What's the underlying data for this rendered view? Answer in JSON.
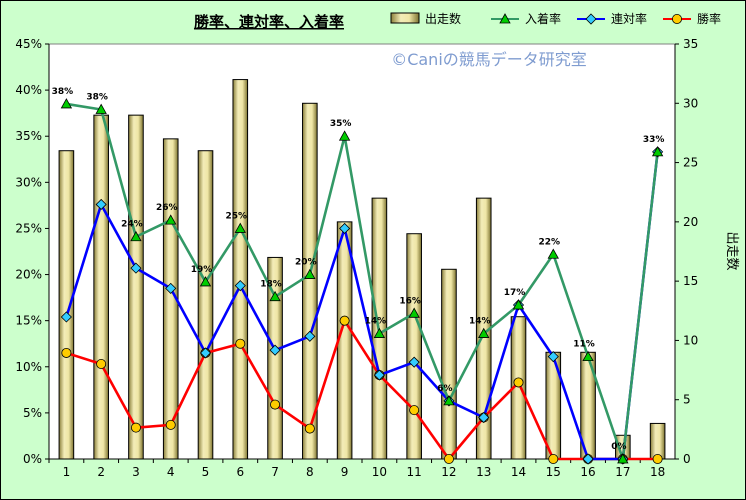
{
  "chart_data": {
    "type": "bar+line",
    "title": "勝率、連対率、入着率",
    "watermark": "©Caniの競馬データ研究室",
    "categories": [
      "1",
      "2",
      "3",
      "4",
      "5",
      "6",
      "7",
      "8",
      "9",
      "10",
      "11",
      "12",
      "13",
      "14",
      "15",
      "16",
      "17",
      "18"
    ],
    "y2label": "出走数",
    "yleft": {
      "range": [
        0,
        45
      ],
      "ticks": [
        "0%",
        "5%",
        "10%",
        "15%",
        "20%",
        "25%",
        "30%",
        "35%",
        "40%",
        "45%"
      ]
    },
    "yright": {
      "range": [
        0,
        35
      ],
      "ticks": [
        "0",
        "5",
        "10",
        "15",
        "20",
        "25",
        "30",
        "35"
      ]
    },
    "bars": {
      "name": "出走数",
      "color": "#e6d99a",
      "values": [
        26,
        29,
        29,
        27,
        26,
        32,
        17,
        30,
        20,
        22,
        19,
        16,
        22,
        12,
        9,
        9,
        2,
        3
      ]
    },
    "series": [
      {
        "name": "入着率",
        "color": "#339966",
        "marker": "triangle",
        "marker_color": "#00cc00",
        "values": [
          38.5,
          37.9,
          24.1,
          25.9,
          19.2,
          25.0,
          17.6,
          20.0,
          35.0,
          13.6,
          15.8,
          6.3,
          13.6,
          16.7,
          22.2,
          11.1,
          0,
          33.3
        ]
      },
      {
        "name": "連対率",
        "color": "#0000ff",
        "marker": "diamond",
        "marker_color": "#33ccff",
        "values": [
          15.4,
          27.6,
          20.7,
          18.5,
          11.5,
          18.8,
          11.8,
          13.3,
          25.0,
          9.1,
          10.5,
          6.3,
          4.5,
          16.7,
          11.1,
          0,
          0,
          33.3
        ]
      },
      {
        "name": "勝率",
        "color": "#ff0000",
        "marker": "circle",
        "marker_color": "#ffcc00",
        "values": [
          11.5,
          10.3,
          3.4,
          3.7,
          11.5,
          12.5,
          5.9,
          3.3,
          15.0,
          9.1,
          5.3,
          0,
          4.5,
          8.3,
          0,
          0,
          0,
          0
        ]
      }
    ],
    "data_labels": [
      "38%",
      "38%",
      "24%",
      "26%",
      "19%",
      "25%",
      "18%",
      "20%",
      "35%",
      "14%",
      "16%",
      "6%",
      "14%",
      "17%",
      "22%",
      "11%",
      "0%",
      "33%"
    ],
    "legend": "top",
    "grid": false
  }
}
